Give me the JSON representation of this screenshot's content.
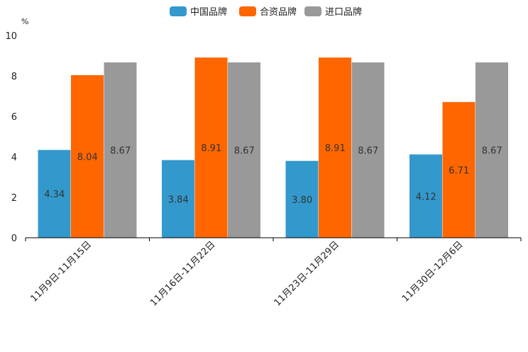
{
  "chart_data": {
    "type": "bar",
    "title": "",
    "unit": "%",
    "xlabel": "",
    "ylabel": "",
    "ylim": [
      0,
      10
    ],
    "yticks": [
      0,
      2,
      4,
      6,
      8,
      10
    ],
    "legend_position": "top-center",
    "grid": false,
    "categories": [
      "11月9日-11月15日",
      "11月16日-11月22日",
      "11月23日-11月29日",
      "11月30日-12月6日"
    ],
    "series": [
      {
        "name": "中国品牌",
        "color": "#3399CC",
        "values": [
          4.34,
          3.84,
          3.8,
          4.12
        ],
        "labels": [
          "4.34",
          "3.84",
          "3.80",
          "4.12"
        ]
      },
      {
        "name": "合资品牌",
        "color": "#FF6600",
        "values": [
          8.04,
          8.91,
          8.91,
          6.71
        ],
        "labels": [
          "8.04",
          "8.91",
          "8.91",
          "6.71"
        ]
      },
      {
        "name": "进口品牌",
        "color": "#999999",
        "values": [
          8.67,
          8.67,
          8.67,
          8.67
        ],
        "labels": [
          "8.67",
          "8.67",
          "8.67",
          "8.67"
        ]
      }
    ]
  }
}
